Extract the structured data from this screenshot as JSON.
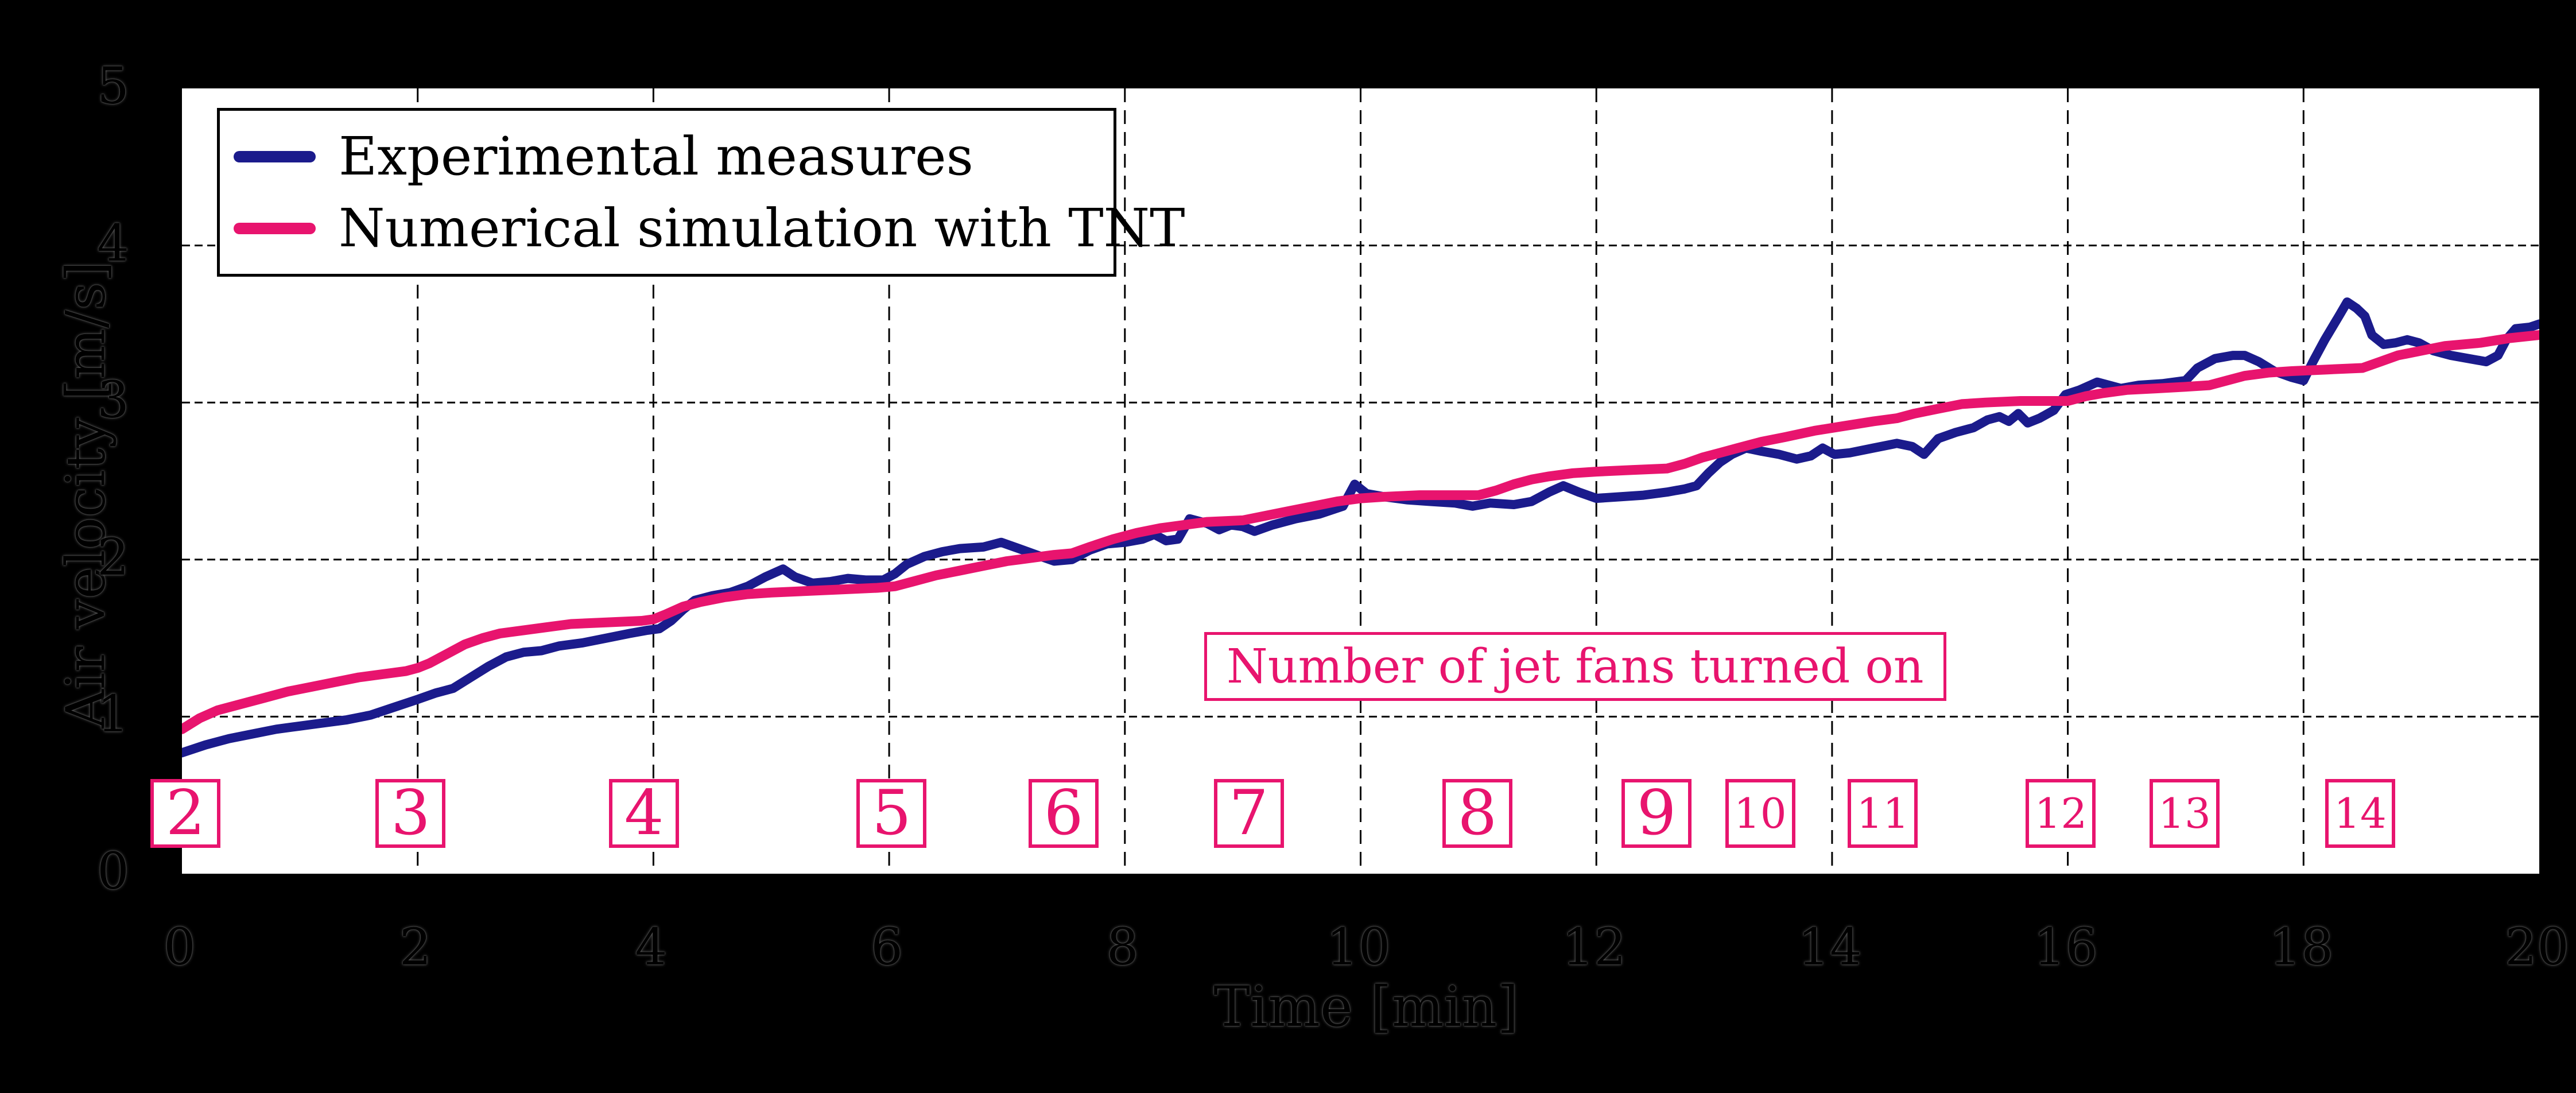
{
  "colors": {
    "background": "#000000",
    "plot_background": "#ffffff",
    "frame": "#000000",
    "grid": "#000000",
    "experimental": "#1b1b8c",
    "simulation": "#e8146e",
    "pink": "#e8146e"
  },
  "legend": {
    "items": [
      {
        "label": "Experimental measures",
        "color": "#1b1b8c"
      },
      {
        "label": "Numerical simulation with TNT",
        "color": "#e8146e"
      }
    ]
  },
  "annotation": {
    "text": "Number of jet fans turned on"
  },
  "fan_markers": {
    "labels": [
      "2",
      "3",
      "4",
      "5",
      "6",
      "7",
      "8",
      "9",
      "10",
      "11",
      "12",
      "13",
      "14"
    ],
    "times": [
      0.05,
      1.96,
      3.94,
      6.04,
      7.5,
      9.07,
      11.01,
      12.53,
      13.41,
      14.45,
      15.96,
      17.01,
      18.5
    ]
  },
  "chart_data": {
    "type": "line",
    "title": "",
    "xlabel": "Time [min]",
    "ylabel": "Air velocity [m/s]",
    "xlim": [
      0,
      20
    ],
    "ylim": [
      0,
      5
    ],
    "x_ticks": [
      0,
      2,
      4,
      6,
      8,
      10,
      12,
      14,
      16,
      18,
      20
    ],
    "y_ticks": [
      0,
      1,
      2,
      3,
      4,
      5
    ],
    "grid": "dashed black gridlines at interior ticks",
    "legend_position": "upper left",
    "annotations": [
      {
        "text": "Number of jet fans turned on",
        "x": 8.7,
        "y": 1.3
      },
      {
        "text": "jet fan count boxes along time axis",
        "values": [
          2,
          3,
          4,
          5,
          6,
          7,
          8,
          9,
          10,
          11,
          12,
          13,
          14
        ],
        "times": [
          0.05,
          1.96,
          3.94,
          6.04,
          7.5,
          9.07,
          11.01,
          12.53,
          13.41,
          14.45,
          15.96,
          17.01,
          18.5
        ]
      }
    ],
    "series": [
      {
        "name": "Experimental measures",
        "color": "#1b1b8c",
        "points": [
          [
            0.0,
            0.77
          ],
          [
            0.2,
            0.82
          ],
          [
            0.4,
            0.86
          ],
          [
            0.6,
            0.89
          ],
          [
            0.8,
            0.92
          ],
          [
            1.0,
            0.94
          ],
          [
            1.2,
            0.96
          ],
          [
            1.4,
            0.98
          ],
          [
            1.6,
            1.01
          ],
          [
            1.8,
            1.06
          ],
          [
            2.0,
            1.11
          ],
          [
            2.15,
            1.15
          ],
          [
            2.3,
            1.18
          ],
          [
            2.45,
            1.25
          ],
          [
            2.6,
            1.32
          ],
          [
            2.75,
            1.38
          ],
          [
            2.9,
            1.41
          ],
          [
            3.05,
            1.42
          ],
          [
            3.2,
            1.45
          ],
          [
            3.4,
            1.47
          ],
          [
            3.6,
            1.5
          ],
          [
            3.8,
            1.53
          ],
          [
            3.95,
            1.55
          ],
          [
            4.05,
            1.56
          ],
          [
            4.15,
            1.61
          ],
          [
            4.25,
            1.68
          ],
          [
            4.35,
            1.74
          ],
          [
            4.5,
            1.77
          ],
          [
            4.65,
            1.79
          ],
          [
            4.8,
            1.83
          ],
          [
            4.95,
            1.89
          ],
          [
            5.1,
            1.94
          ],
          [
            5.2,
            1.89
          ],
          [
            5.35,
            1.85
          ],
          [
            5.5,
            1.86
          ],
          [
            5.65,
            1.88
          ],
          [
            5.8,
            1.87
          ],
          [
            5.95,
            1.87
          ],
          [
            6.05,
            1.91
          ],
          [
            6.15,
            1.97
          ],
          [
            6.3,
            2.02
          ],
          [
            6.45,
            2.05
          ],
          [
            6.6,
            2.07
          ],
          [
            6.8,
            2.08
          ],
          [
            6.95,
            2.11
          ],
          [
            7.1,
            2.07
          ],
          [
            7.25,
            2.03
          ],
          [
            7.4,
            1.99
          ],
          [
            7.55,
            2.0
          ],
          [
            7.7,
            2.06
          ],
          [
            7.85,
            2.1
          ],
          [
            8.0,
            2.11
          ],
          [
            8.15,
            2.13
          ],
          [
            8.25,
            2.16
          ],
          [
            8.35,
            2.12
          ],
          [
            8.45,
            2.13
          ],
          [
            8.55,
            2.26
          ],
          [
            8.7,
            2.23
          ],
          [
            8.8,
            2.19
          ],
          [
            8.9,
            2.22
          ],
          [
            9.0,
            2.21
          ],
          [
            9.1,
            2.18
          ],
          [
            9.25,
            2.22
          ],
          [
            9.45,
            2.26
          ],
          [
            9.65,
            2.29
          ],
          [
            9.85,
            2.34
          ],
          [
            9.95,
            2.48
          ],
          [
            10.05,
            2.42
          ],
          [
            10.2,
            2.4
          ],
          [
            10.4,
            2.38
          ],
          [
            10.6,
            2.37
          ],
          [
            10.8,
            2.36
          ],
          [
            10.95,
            2.34
          ],
          [
            11.1,
            2.36
          ],
          [
            11.3,
            2.35
          ],
          [
            11.45,
            2.37
          ],
          [
            11.6,
            2.43
          ],
          [
            11.72,
            2.47
          ],
          [
            11.85,
            2.43
          ],
          [
            12.0,
            2.39
          ],
          [
            12.2,
            2.4
          ],
          [
            12.4,
            2.41
          ],
          [
            12.6,
            2.43
          ],
          [
            12.75,
            2.45
          ],
          [
            12.85,
            2.47
          ],
          [
            12.95,
            2.55
          ],
          [
            13.05,
            2.62
          ],
          [
            13.15,
            2.67
          ],
          [
            13.27,
            2.71
          ],
          [
            13.4,
            2.69
          ],
          [
            13.55,
            2.67
          ],
          [
            13.7,
            2.64
          ],
          [
            13.82,
            2.66
          ],
          [
            13.92,
            2.71
          ],
          [
            14.02,
            2.67
          ],
          [
            14.15,
            2.68
          ],
          [
            14.35,
            2.71
          ],
          [
            14.55,
            2.74
          ],
          [
            14.68,
            2.72
          ],
          [
            14.78,
            2.67
          ],
          [
            14.9,
            2.77
          ],
          [
            15.05,
            2.81
          ],
          [
            15.2,
            2.84
          ],
          [
            15.32,
            2.89
          ],
          [
            15.42,
            2.91
          ],
          [
            15.5,
            2.88
          ],
          [
            15.58,
            2.93
          ],
          [
            15.66,
            2.87
          ],
          [
            15.76,
            2.9
          ],
          [
            15.88,
            2.95
          ],
          [
            15.98,
            3.05
          ],
          [
            16.1,
            3.08
          ],
          [
            16.25,
            3.13
          ],
          [
            16.35,
            3.11
          ],
          [
            16.45,
            3.09
          ],
          [
            16.6,
            3.11
          ],
          [
            16.8,
            3.12
          ],
          [
            17.0,
            3.14
          ],
          [
            17.1,
            3.22
          ],
          [
            17.25,
            3.28
          ],
          [
            17.4,
            3.3
          ],
          [
            17.5,
            3.3
          ],
          [
            17.62,
            3.26
          ],
          [
            17.75,
            3.2
          ],
          [
            17.9,
            3.16
          ],
          [
            18.0,
            3.14
          ],
          [
            18.08,
            3.26
          ],
          [
            18.18,
            3.4
          ],
          [
            18.3,
            3.55
          ],
          [
            18.37,
            3.64
          ],
          [
            18.45,
            3.6
          ],
          [
            18.52,
            3.55
          ],
          [
            18.58,
            3.43
          ],
          [
            18.68,
            3.37
          ],
          [
            18.78,
            3.38
          ],
          [
            18.88,
            3.4
          ],
          [
            18.98,
            3.38
          ],
          [
            19.1,
            3.33
          ],
          [
            19.25,
            3.3
          ],
          [
            19.4,
            3.28
          ],
          [
            19.55,
            3.26
          ],
          [
            19.65,
            3.3
          ],
          [
            19.72,
            3.4
          ],
          [
            19.8,
            3.47
          ],
          [
            19.92,
            3.48
          ],
          [
            20.0,
            3.5
          ]
        ]
      },
      {
        "name": "Numerical simulation with TNT",
        "color": "#e8146e",
        "points": [
          [
            0.0,
            0.92
          ],
          [
            0.15,
            0.99
          ],
          [
            0.3,
            1.04
          ],
          [
            0.5,
            1.08
          ],
          [
            0.7,
            1.12
          ],
          [
            0.9,
            1.16
          ],
          [
            1.1,
            1.19
          ],
          [
            1.3,
            1.22
          ],
          [
            1.5,
            1.25
          ],
          [
            1.7,
            1.27
          ],
          [
            1.9,
            1.29
          ],
          [
            2.0,
            1.31
          ],
          [
            2.1,
            1.34
          ],
          [
            2.25,
            1.4
          ],
          [
            2.4,
            1.46
          ],
          [
            2.55,
            1.5
          ],
          [
            2.7,
            1.53
          ],
          [
            2.9,
            1.55
          ],
          [
            3.1,
            1.57
          ],
          [
            3.3,
            1.59
          ],
          [
            3.6,
            1.6
          ],
          [
            3.9,
            1.61
          ],
          [
            4.0,
            1.62
          ],
          [
            4.1,
            1.65
          ],
          [
            4.25,
            1.7
          ],
          [
            4.4,
            1.73
          ],
          [
            4.6,
            1.76
          ],
          [
            4.8,
            1.78
          ],
          [
            5.0,
            1.79
          ],
          [
            5.3,
            1.8
          ],
          [
            5.6,
            1.81
          ],
          [
            5.9,
            1.82
          ],
          [
            6.05,
            1.83
          ],
          [
            6.2,
            1.86
          ],
          [
            6.4,
            1.9
          ],
          [
            6.6,
            1.93
          ],
          [
            6.8,
            1.96
          ],
          [
            7.0,
            1.99
          ],
          [
            7.2,
            2.01
          ],
          [
            7.4,
            2.03
          ],
          [
            7.55,
            2.04
          ],
          [
            7.7,
            2.08
          ],
          [
            7.9,
            2.13
          ],
          [
            8.1,
            2.17
          ],
          [
            8.3,
            2.2
          ],
          [
            8.5,
            2.22
          ],
          [
            8.7,
            2.24
          ],
          [
            9.0,
            2.25
          ],
          [
            9.2,
            2.28
          ],
          [
            9.4,
            2.31
          ],
          [
            9.6,
            2.34
          ],
          [
            9.8,
            2.37
          ],
          [
            10.0,
            2.39
          ],
          [
            10.2,
            2.4
          ],
          [
            10.5,
            2.41
          ],
          [
            11.0,
            2.41
          ],
          [
            11.15,
            2.44
          ],
          [
            11.3,
            2.48
          ],
          [
            11.45,
            2.51
          ],
          [
            11.6,
            2.53
          ],
          [
            11.8,
            2.55
          ],
          [
            12.0,
            2.56
          ],
          [
            12.3,
            2.57
          ],
          [
            12.6,
            2.58
          ],
          [
            12.75,
            2.61
          ],
          [
            12.9,
            2.65
          ],
          [
            13.05,
            2.68
          ],
          [
            13.2,
            2.71
          ],
          [
            13.4,
            2.75
          ],
          [
            13.6,
            2.78
          ],
          [
            13.85,
            2.82
          ],
          [
            14.1,
            2.85
          ],
          [
            14.35,
            2.88
          ],
          [
            14.55,
            2.9
          ],
          [
            14.7,
            2.93
          ],
          [
            14.9,
            2.96
          ],
          [
            15.1,
            2.99
          ],
          [
            15.3,
            3.0
          ],
          [
            15.6,
            3.01
          ],
          [
            16.0,
            3.01
          ],
          [
            16.15,
            3.04
          ],
          [
            16.3,
            3.06
          ],
          [
            16.5,
            3.08
          ],
          [
            16.75,
            3.09
          ],
          [
            17.0,
            3.1
          ],
          [
            17.2,
            3.11
          ],
          [
            17.35,
            3.14
          ],
          [
            17.5,
            3.17
          ],
          [
            17.7,
            3.19
          ],
          [
            17.9,
            3.2
          ],
          [
            18.2,
            3.21
          ],
          [
            18.5,
            3.22
          ],
          [
            18.65,
            3.26
          ],
          [
            18.8,
            3.3
          ],
          [
            19.0,
            3.33
          ],
          [
            19.2,
            3.36
          ],
          [
            19.5,
            3.38
          ],
          [
            19.75,
            3.41
          ],
          [
            20.0,
            3.43
          ]
        ]
      }
    ]
  }
}
